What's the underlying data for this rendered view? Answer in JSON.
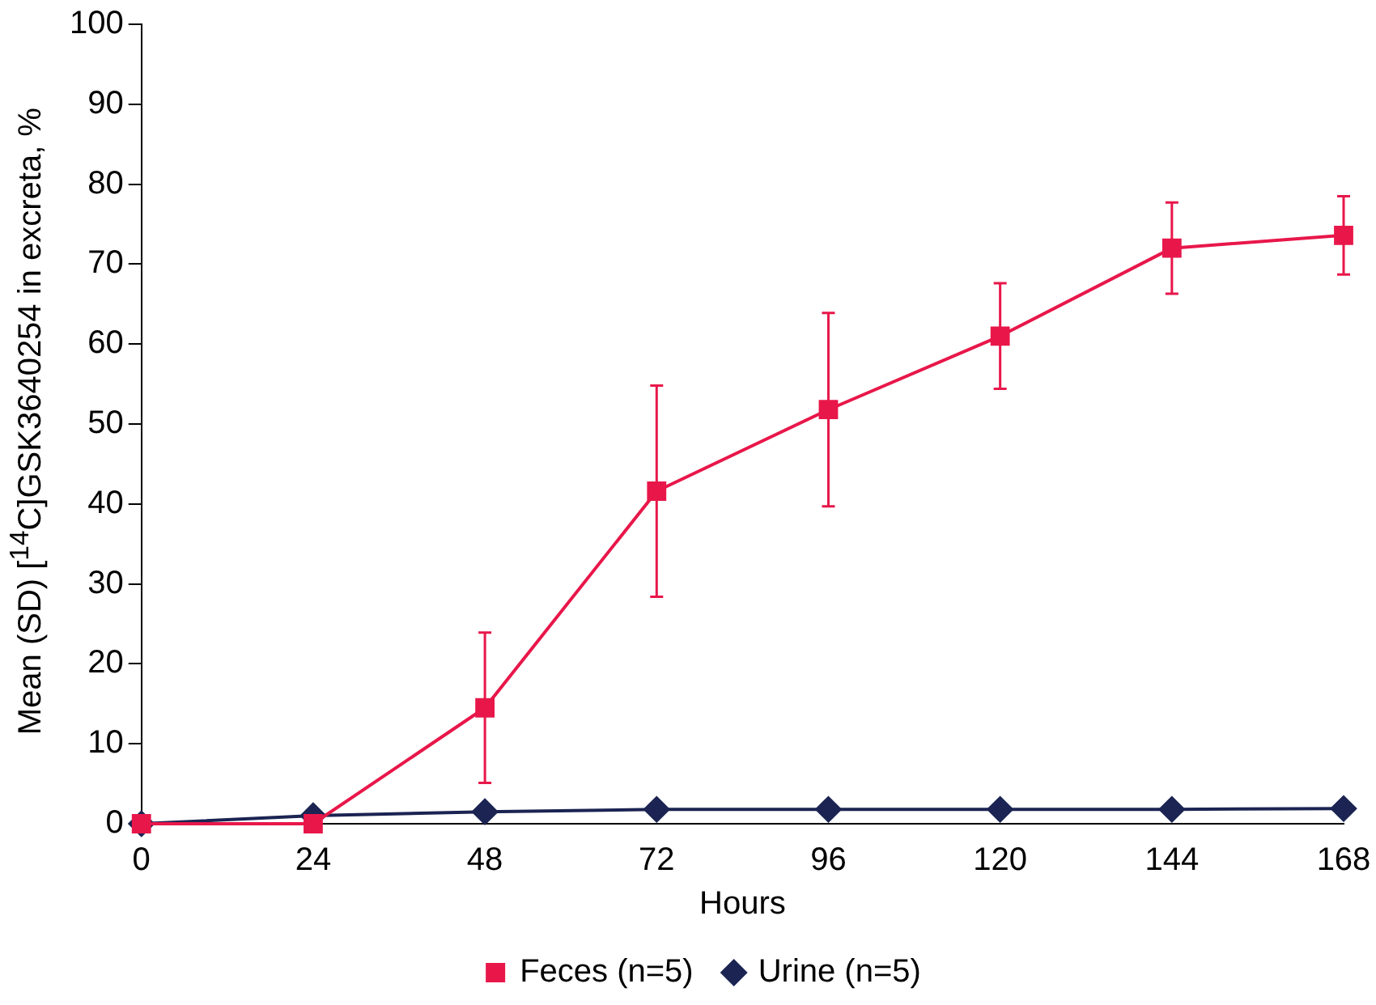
{
  "chart_data": {
    "type": "line",
    "xlabel": "Hours",
    "ylabel": "Mean (SD) [$^{14}$C]GSK3640254 in excreta, %",
    "x": [
      0,
      24,
      48,
      72,
      96,
      120,
      144,
      168
    ],
    "series": [
      {
        "name": "Feces (n=5)",
        "color": "#e8174a",
        "marker": "square",
        "values": [
          0,
          0,
          14.5,
          41.6,
          51.8,
          61,
          72,
          73.6
        ],
        "errors": [
          null,
          null,
          9.4,
          13.2,
          12.1,
          6.6,
          5.7,
          4.9
        ]
      },
      {
        "name": "Urine (n=5)",
        "color": "#1b2452",
        "marker": "diamond",
        "values": [
          0,
          1,
          1.5,
          1.8,
          1.8,
          1.8,
          1.8,
          1.9
        ]
      }
    ],
    "xlim": [
      0,
      168
    ],
    "xticks": [
      0,
      24,
      48,
      72,
      96,
      120,
      144,
      168
    ],
    "ylim": [
      0,
      100
    ],
    "yticks": [
      0,
      10,
      20,
      30,
      40,
      50,
      60,
      70,
      80,
      90,
      100
    ],
    "grid": false,
    "legend": "bottom",
    "line_style": "solid"
  }
}
